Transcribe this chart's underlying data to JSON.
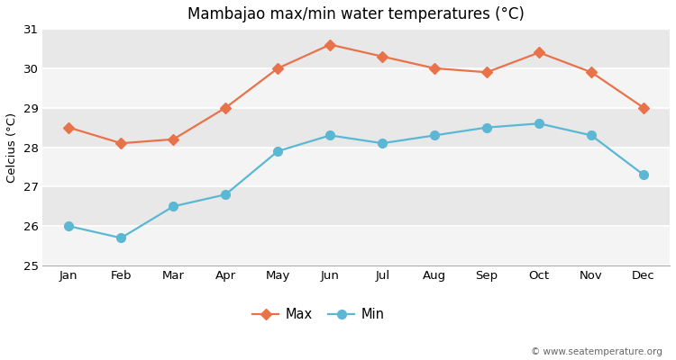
{
  "title": "Mambajao max/min water temperatures (°C)",
  "ylabel": "Celcius (°C)",
  "months": [
    "Jan",
    "Feb",
    "Mar",
    "Apr",
    "May",
    "Jun",
    "Jul",
    "Aug",
    "Sep",
    "Oct",
    "Nov",
    "Dec"
  ],
  "max_temps": [
    28.5,
    28.1,
    28.2,
    29.0,
    30.0,
    30.6,
    30.3,
    30.0,
    29.9,
    30.4,
    29.9,
    29.0
  ],
  "min_temps": [
    26.0,
    25.7,
    26.5,
    26.8,
    27.9,
    28.3,
    28.1,
    28.3,
    28.5,
    28.6,
    28.3,
    27.3
  ],
  "max_color": "#E8724A",
  "min_color": "#5BB8D4",
  "bg_color": "#FFFFFF",
  "plot_bg_color": "#E8E8E8",
  "band_color": "#DCDCDC",
  "ylim": [
    25,
    31
  ],
  "yticks": [
    25,
    26,
    27,
    28,
    29,
    30,
    31
  ],
  "watermark": "© www.seatemperature.org"
}
